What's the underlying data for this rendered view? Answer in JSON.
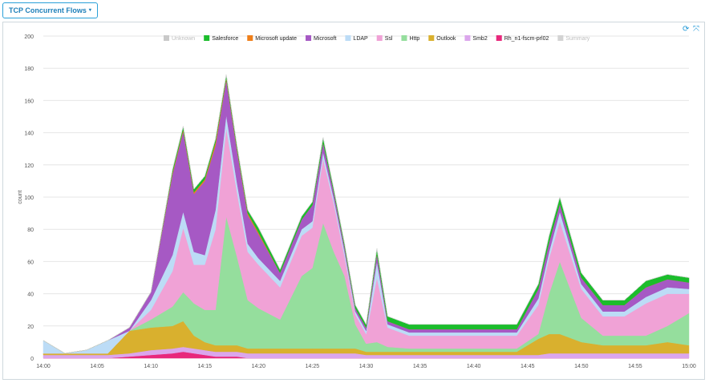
{
  "header": {
    "dropdown_label": "TCP Concurrent Flows",
    "dropdown_caret": "▾"
  },
  "toolbar": {
    "refresh_icon": "refresh-icon",
    "expand_icon": "expand-icon",
    "refresh_glyph": "⟳",
    "expand_glyph": "⤧"
  },
  "chart_data": {
    "type": "area",
    "stacked": true,
    "title": "",
    "xlabel": "",
    "ylabel": "count",
    "ylim": [
      0,
      200
    ],
    "yticks": [
      0,
      20,
      40,
      60,
      80,
      100,
      120,
      140,
      160,
      180,
      200
    ],
    "xticks": [
      "14:00",
      "14:05",
      "14:10",
      "14:15",
      "14:20",
      "14:25",
      "14:30",
      "14:35",
      "14:40",
      "14:45",
      "14:50",
      "14:55",
      "15:00"
    ],
    "grid": true,
    "legend_position": "top",
    "x": [
      "14:00",
      "14:02",
      "14:04",
      "14:06",
      "14:08",
      "14:10",
      "14:12",
      "14:13",
      "14:14",
      "14:15",
      "14:16",
      "14:17",
      "14:18",
      "14:19",
      "14:20",
      "14:22",
      "14:24",
      "14:25",
      "14:26",
      "14:27",
      "14:28",
      "14:29",
      "14:30",
      "14:31",
      "14:32",
      "14:34",
      "14:36",
      "14:38",
      "14:40",
      "14:42",
      "14:44",
      "14:46",
      "14:47",
      "14:48",
      "14:50",
      "14:52",
      "14:54",
      "14:56",
      "14:58",
      "15:00"
    ],
    "series": [
      {
        "name": "Rh_n1-fscm-prl02",
        "color": "#e8287c",
        "values": [
          0,
          0,
          0,
          0,
          1,
          2,
          3,
          4,
          3,
          2,
          1,
          1,
          1,
          0,
          0,
          0,
          0,
          0,
          0,
          0,
          0,
          0,
          0,
          0,
          0,
          0,
          0,
          0,
          0,
          0,
          0,
          0,
          0,
          0,
          0,
          0,
          0,
          0,
          0,
          0
        ]
      },
      {
        "name": "Smb2",
        "color": "#dba6ec",
        "values": [
          2,
          2,
          2,
          2,
          2,
          3,
          3,
          3,
          3,
          3,
          3,
          3,
          3,
          3,
          3,
          3,
          3,
          3,
          3,
          3,
          3,
          3,
          2,
          2,
          2,
          2,
          2,
          2,
          2,
          2,
          2,
          2,
          3,
          3,
          3,
          3,
          3,
          3,
          3,
          3
        ]
      },
      {
        "name": "Outlook",
        "color": "#d9b02e",
        "values": [
          1,
          1,
          1,
          1,
          14,
          14,
          14,
          16,
          8,
          5,
          4,
          4,
          4,
          3,
          3,
          3,
          3,
          3,
          3,
          3,
          3,
          3,
          2,
          2,
          2,
          2,
          2,
          2,
          2,
          2,
          2,
          10,
          12,
          12,
          7,
          5,
          5,
          5,
          7,
          5
        ]
      },
      {
        "name": "Http",
        "color": "#95de9d",
        "values": [
          0,
          0,
          0,
          0,
          0,
          5,
          12,
          18,
          20,
          20,
          22,
          80,
          55,
          30,
          25,
          18,
          45,
          50,
          78,
          60,
          45,
          15,
          5,
          6,
          3,
          2,
          2,
          2,
          2,
          2,
          2,
          3,
          25,
          45,
          15,
          6,
          6,
          6,
          10,
          20
        ]
      },
      {
        "name": "Ssl",
        "color": "#f0a2d6",
        "values": [
          0,
          0,
          0,
          0,
          0,
          6,
          22,
          40,
          24,
          28,
          50,
          55,
          40,
          30,
          27,
          20,
          25,
          25,
          40,
          30,
          12,
          6,
          6,
          40,
          12,
          8,
          8,
          8,
          8,
          8,
          8,
          18,
          22,
          25,
          18,
          12,
          12,
          20,
          20,
          12
        ]
      },
      {
        "name": "LDAP",
        "color": "#bcdcf6",
        "values": [
          8,
          0,
          2,
          8,
          0,
          6,
          10,
          10,
          8,
          6,
          12,
          8,
          6,
          5,
          4,
          4,
          4,
          4,
          4,
          3,
          3,
          2,
          2,
          10,
          2,
          2,
          2,
          2,
          2,
          2,
          2,
          4,
          4,
          6,
          3,
          3,
          3,
          4,
          4,
          3
        ]
      },
      {
        "name": "Microsoft",
        "color": "#a659c4",
        "values": [
          0,
          0,
          0,
          0,
          2,
          5,
          50,
          50,
          36,
          46,
          40,
          22,
          20,
          18,
          15,
          5,
          6,
          10,
          6,
          4,
          3,
          2,
          2,
          5,
          2,
          2,
          2,
          2,
          2,
          2,
          2,
          6,
          6,
          5,
          4,
          4,
          4,
          6,
          5,
          4
        ]
      },
      {
        "name": "Microsoft update",
        "color": "#ef7f1a",
        "values": [
          0,
          0,
          0,
          0,
          0,
          0,
          1,
          1,
          1,
          1,
          2,
          1,
          1,
          1,
          1,
          0,
          0,
          0,
          0,
          0,
          0,
          0,
          0,
          0,
          0,
          0,
          0,
          0,
          0,
          0,
          0,
          0,
          0,
          0,
          0,
          0,
          0,
          0,
          0,
          0
        ]
      },
      {
        "name": "Salesforce",
        "color": "#1bbd2c",
        "values": [
          0,
          0,
          0,
          0,
          0,
          0,
          2,
          2,
          2,
          2,
          2,
          2,
          2,
          2,
          3,
          2,
          2,
          2,
          3,
          2,
          2,
          2,
          2,
          3,
          3,
          3,
          3,
          3,
          3,
          3,
          3,
          3,
          4,
          4,
          3,
          3,
          3,
          4,
          3,
          3
        ]
      },
      {
        "name": "Unknown",
        "color": "#c9c9c9",
        "values": [
          0,
          0,
          0,
          0,
          0,
          0,
          0,
          0,
          0,
          0,
          0,
          0,
          0,
          0,
          0,
          0,
          0,
          0,
          0,
          0,
          0,
          0,
          0,
          0,
          0,
          0,
          0,
          0,
          0,
          0,
          0,
          0,
          0,
          0,
          0,
          0,
          0,
          0,
          0,
          0
        ]
      },
      {
        "name": "Summary",
        "color": "#d3d3d3",
        "values": [
          0,
          0,
          0,
          0,
          0,
          0,
          0,
          0,
          0,
          0,
          0,
          0,
          0,
          0,
          0,
          0,
          0,
          0,
          0,
          0,
          0,
          0,
          0,
          0,
          0,
          0,
          0,
          0,
          0,
          0,
          0,
          0,
          0,
          0,
          0,
          0,
          0,
          0,
          0,
          0
        ]
      }
    ],
    "legend": [
      {
        "name": "Unknown",
        "color": "#c9c9c9",
        "disabled": true
      },
      {
        "name": "Salesforce",
        "color": "#1bbd2c",
        "disabled": false
      },
      {
        "name": "Microsoft update",
        "color": "#ef7f1a",
        "disabled": false
      },
      {
        "name": "Microsoft",
        "color": "#a659c4",
        "disabled": false
      },
      {
        "name": "LDAP",
        "color": "#bcdcf6",
        "disabled": false
      },
      {
        "name": "Ssl",
        "color": "#f0a2d6",
        "disabled": false
      },
      {
        "name": "Http",
        "color": "#95de9d",
        "disabled": false
      },
      {
        "name": "Outlook",
        "color": "#d9b02e",
        "disabled": false
      },
      {
        "name": "Smb2",
        "color": "#dba6ec",
        "disabled": false
      },
      {
        "name": "Rh_n1-fscm-prl02",
        "color": "#e8287c",
        "disabled": false
      },
      {
        "name": "Summary",
        "color": "#d3d3d3",
        "disabled": true
      }
    ]
  }
}
